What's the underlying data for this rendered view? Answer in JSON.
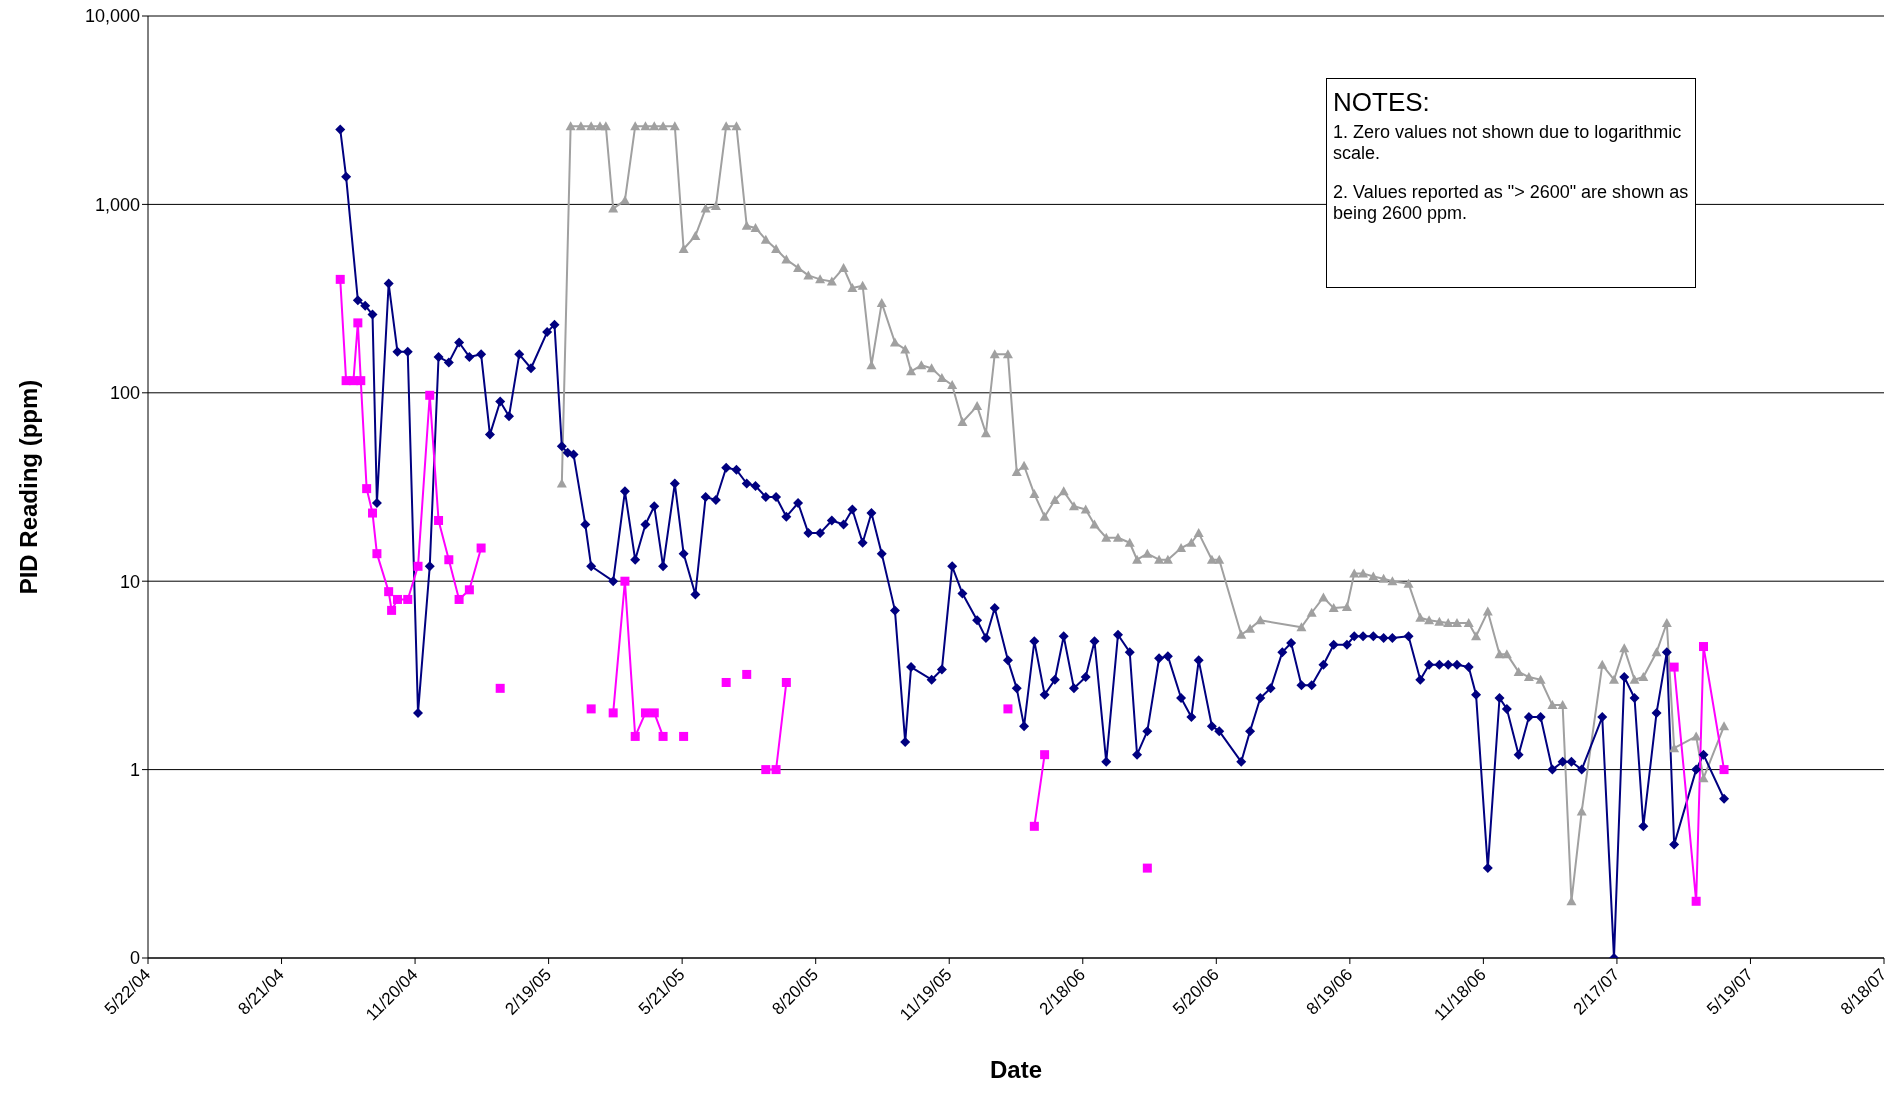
{
  "chart_data": {
    "type": "line",
    "xlabel": "Date",
    "ylabel": "PID Reading (ppm)",
    "log": "y",
    "grid": "y",
    "xlim": [
      "2004-05-22",
      "2007-08-18"
    ],
    "xticks": [
      {
        "value": "2004-05-22",
        "label": "5/22/04"
      },
      {
        "value": "2004-08-21",
        "label": "8/21/04"
      },
      {
        "value": "2004-11-20",
        "label": "11/20/04"
      },
      {
        "value": "2005-02-19",
        "label": "2/19/05"
      },
      {
        "value": "2005-05-21",
        "label": "5/21/05"
      },
      {
        "value": "2005-08-20",
        "label": "8/20/05"
      },
      {
        "value": "2005-11-19",
        "label": "11/19/05"
      },
      {
        "value": "2006-02-18",
        "label": "2/18/06"
      },
      {
        "value": "2006-05-20",
        "label": "5/20/06"
      },
      {
        "value": "2006-08-19",
        "label": "8/19/06"
      },
      {
        "value": "2006-11-18",
        "label": "11/18/06"
      },
      {
        "value": "2007-02-17",
        "label": "2/17/07"
      },
      {
        "value": "2007-05-19",
        "label": "5/19/07"
      },
      {
        "value": "2007-08-18",
        "label": "8/18/07"
      }
    ],
    "ylim": [
      0.1,
      10000
    ],
    "yticks": [
      {
        "value": 0.1,
        "label": "0"
      },
      {
        "value": 1,
        "label": "1"
      },
      {
        "value": 10,
        "label": "10"
      },
      {
        "value": 100,
        "label": "100"
      },
      {
        "value": 1000,
        "label": "1,000"
      },
      {
        "value": 10000,
        "label": "10,000"
      }
    ],
    "annotations": [
      "NOTES:",
      "1.  Zero values not shown due to logarithmic scale.",
      "2.  Values reported as \"> 2600\" are shown as being 2600 ppm."
    ],
    "series": [
      {
        "color": "#a0a0a0",
        "marker": "triangle",
        "x": [
          "2005-02-28",
          "2005-03-06",
          "2005-03-13",
          "2005-03-20",
          "2005-03-26",
          "2005-03-30",
          "2005-04-04",
          "2005-04-12",
          "2005-04-19",
          "2005-04-26",
          "2005-05-02",
          "2005-05-08",
          "2005-05-16",
          "2005-05-22",
          "2005-05-30",
          "2005-06-06",
          "2005-06-13",
          "2005-06-20",
          "2005-06-27",
          "2005-07-04",
          "2005-07-10",
          "2005-07-17",
          "2005-07-24",
          "2005-07-31",
          "2005-08-08",
          "2005-08-15",
          "2005-08-23",
          "2005-08-31",
          "2005-09-08",
          "2005-09-14",
          "2005-09-21",
          "2005-09-27",
          "2005-10-04",
          "2005-10-13",
          "2005-10-20",
          "2005-10-24",
          "2005-10-31",
          "2005-11-07",
          "2005-11-14",
          "2005-11-21",
          "2005-11-28",
          "2005-12-08",
          "2005-12-14",
          "2005-12-20",
          "2005-12-29",
          "2006-01-04",
          "2006-01-09",
          "2006-01-16",
          "2006-01-23",
          "2006-01-30",
          "2006-02-05",
          "2006-02-12",
          "2006-02-20",
          "2006-02-26",
          "2006-03-06",
          "2006-03-14",
          "2006-03-22",
          "2006-03-27",
          "2006-04-03",
          "2006-04-11",
          "2006-04-17",
          "2006-04-26",
          "2006-05-03",
          "2006-05-08",
          "2006-05-17",
          "2006-05-22",
          "2006-06-06",
          "2006-06-12",
          "2006-06-19",
          "2006-07-17",
          "2006-07-24",
          "2006-08-01",
          "2006-08-08",
          "2006-08-17",
          "2006-08-22",
          "2006-08-28",
          "2006-09-04",
          "2006-09-11",
          "2006-09-17",
          "2006-09-28",
          "2006-10-06",
          "2006-10-12",
          "2006-10-19",
          "2006-10-25",
          "2006-10-31",
          "2006-11-08",
          "2006-11-13",
          "2006-11-21",
          "2006-11-29",
          "2006-12-04",
          "2006-12-12",
          "2006-12-19",
          "2006-12-27",
          "2007-01-04",
          "2007-01-11",
          "2007-01-17",
          "2007-01-24",
          "2007-02-07",
          "2007-02-15",
          "2007-02-22",
          "2007-03-01",
          "2007-03-07",
          "2007-03-16",
          "2007-03-23",
          "2007-03-28",
          "2007-04-12",
          "2007-04-17",
          "2007-05-01"
        ],
        "values": [
          33,
          2600,
          2600,
          2600,
          2600,
          2600,
          950,
          1050,
          2600,
          2600,
          2600,
          2600,
          2600,
          580,
          680,
          950,
          980,
          2600,
          2600,
          770,
          750,
          650,
          580,
          510,
          460,
          420,
          400,
          390,
          460,
          360,
          370,
          140,
          300,
          185,
          170,
          130,
          140,
          135,
          120,
          110,
          70,
          85,
          61,
          160,
          160,
          38,
          41,
          29,
          22,
          27,
          30,
          25,
          24,
          20,
          17,
          17,
          16,
          13,
          14,
          13,
          13,
          15,
          16,
          18,
          13,
          13,
          5.2,
          5.6,
          6.2,
          5.7,
          6.8,
          8.2,
          7.2,
          7.3,
          11,
          11,
          10.6,
          10.3,
          10,
          9.7,
          6.4,
          6.2,
          6.1,
          6,
          6,
          6,
          5.1,
          6.9,
          4.1,
          4.1,
          3.3,
          3.1,
          3,
          2.2,
          2.2,
          0.2,
          0.6,
          3.6,
          3,
          4.4,
          3,
          3.1,
          4.2,
          6,
          1.3,
          1.5,
          0.9,
          1.7
        ]
      },
      {
        "color": "#000080",
        "marker": "diamond",
        "x": [
          "2004-09-30",
          "2004-10-04",
          "2004-10-12",
          "2004-10-17",
          "2004-10-22",
          "2004-10-25",
          "2004-11-02",
          "2004-11-08",
          "2004-11-15",
          "2004-11-22",
          "2004-11-30",
          "2004-12-06",
          "2004-12-13",
          "2004-12-20",
          "2004-12-27",
          "2005-01-04",
          "2005-01-10",
          "2005-01-17",
          "2005-01-23",
          "2005-01-30",
          "2005-02-07",
          "2005-02-18",
          "2005-02-23",
          "2005-02-28",
          "2005-03-04",
          "2005-03-08",
          "2005-03-16",
          "2005-03-20",
          "2005-04-04",
          "2005-04-12",
          "2005-04-19",
          "2005-04-26",
          "2005-05-02",
          "2005-05-08",
          "2005-05-16",
          "2005-05-22",
          "2005-05-30",
          "2005-06-06",
          "2005-06-13",
          "2005-06-20",
          "2005-06-27",
          "2005-07-04",
          "2005-07-10",
          "2005-07-17",
          "2005-07-24",
          "2005-07-31",
          "2005-08-08",
          "2005-08-15",
          "2005-08-23",
          "2005-08-31",
          "2005-09-08",
          "2005-09-14",
          "2005-09-21",
          "2005-09-27",
          "2005-10-04",
          "2005-10-13",
          "2005-10-20",
          "2005-10-24",
          "2005-11-07",
          "2005-11-14",
          "2005-11-21",
          "2005-11-28",
          "2005-12-08",
          "2005-12-14",
          "2005-12-20",
          "2005-12-29",
          "2006-01-04",
          "2006-01-09",
          "2006-01-16",
          "2006-01-23",
          "2006-01-30",
          "2006-02-05",
          "2006-02-12",
          "2006-02-20",
          "2006-02-26",
          "2006-03-06",
          "2006-03-14",
          "2006-03-22",
          "2006-03-27",
          "2006-04-03",
          "2006-04-11",
          "2006-04-17",
          "2006-04-26",
          "2006-05-03",
          "2006-05-08",
          "2006-05-17",
          "2006-05-22",
          "2006-06-06",
          "2006-06-12",
          "2006-06-19",
          "2006-06-26",
          "2006-07-04",
          "2006-07-10",
          "2006-07-17",
          "2006-07-24",
          "2006-08-01",
          "2006-08-08",
          "2006-08-17",
          "2006-08-22",
          "2006-08-28",
          "2006-09-04",
          "2006-09-11",
          "2006-09-17",
          "2006-09-28",
          "2006-10-06",
          "2006-10-12",
          "2006-10-19",
          "2006-10-25",
          "2006-10-31",
          "2006-11-08",
          "2006-11-13",
          "2006-11-21",
          "2006-11-29",
          "2006-12-04",
          "2006-12-12",
          "2006-12-19",
          "2006-12-27",
          "2007-01-04",
          "2007-01-11",
          "2007-01-17",
          "2007-01-24",
          "2007-02-07",
          "2007-02-15",
          "2007-02-22",
          "2007-03-01",
          "2007-03-07",
          "2007-03-16",
          "2007-03-23",
          "2007-03-28",
          "2007-04-12",
          "2007-04-17",
          "2007-05-01"
        ],
        "values": [
          2500,
          1400,
          310,
          290,
          260,
          26,
          380,
          165,
          165,
          2,
          12,
          155,
          145,
          185,
          155,
          160,
          60,
          90,
          75,
          160,
          135,
          210,
          230,
          52,
          48,
          47,
          20,
          12,
          10,
          30,
          13,
          20,
          25,
          12,
          33,
          14,
          8.5,
          28,
          27,
          40,
          39,
          33,
          32,
          28,
          28,
          22,
          26,
          18,
          18,
          21,
          20,
          24,
          16,
          23,
          14,
          7,
          1.4,
          3.5,
          3,
          3.4,
          12,
          8.6,
          6.2,
          5,
          7.2,
          3.8,
          2.7,
          1.7,
          4.8,
          2.5,
          3,
          5.1,
          2.7,
          3.1,
          4.8,
          1.1,
          5.2,
          4.2,
          1.2,
          1.6,
          3.9,
          4,
          2.4,
          1.9,
          3.8,
          1.7,
          1.6,
          1.1,
          1.6,
          2.4,
          2.7,
          4.2,
          4.7,
          2.8,
          2.8,
          3.6,
          4.6,
          4.6,
          5.1,
          5.1,
          5.1,
          5,
          5,
          5.1,
          3,
          3.6,
          3.6,
          3.6,
          3.6,
          3.5,
          2.5,
          0.3,
          2.4,
          2.1,
          1.2,
          1.9,
          1.9,
          1,
          1.1,
          1.1,
          1,
          1.9,
          0.1,
          3.1,
          2.4,
          0.5,
          2,
          4.2,
          0.4,
          1,
          1.2,
          0.7
        ]
      },
      {
        "color": "#ff00ff",
        "marker": "square",
        "x": [
          "2004-09-30",
          "2004-10-04",
          "2004-10-09",
          "2004-10-12",
          "2004-10-14",
          "2004-10-18",
          "2004-10-22",
          "2004-10-25",
          "2004-11-02",
          "2004-11-04",
          "2004-11-08",
          "2004-11-15",
          "2004-11-22",
          "2004-11-30",
          "2004-12-06",
          "2004-12-13",
          "2004-12-20",
          "2004-12-27",
          "2005-01-04",
          "2005-01-10",
          "2005-01-17",
          "2005-02-07",
          "2005-03-20",
          "2005-03-30",
          "2005-04-04",
          "2005-04-12",
          "2005-04-19",
          "2005-04-26",
          "2005-05-02",
          "2005-05-08",
          "2005-05-16",
          "2005-05-22",
          "2005-06-06",
          "2005-06-20",
          "2005-06-27",
          "2005-07-04",
          "2005-07-10",
          "2005-07-17",
          "2005-07-24",
          "2005-07-31",
          "2005-08-08",
          "2005-12-29",
          "2006-01-04",
          "2006-01-16",
          "2006-01-23",
          "2006-01-30",
          "2006-04-03",
          "2006-04-11",
          "2007-03-28",
          "2007-04-12",
          "2007-04-17",
          "2007-05-01"
        ],
        "values": [
          400,
          116,
          116,
          235,
          116,
          31,
          23,
          14,
          8.8,
          7,
          8,
          8,
          12,
          97,
          21,
          13,
          8,
          9,
          15,
          null,
          2.7,
          null,
          2.1,
          null,
          2,
          10,
          1.5,
          2,
          2,
          1.5,
          null,
          1.5,
          null,
          2.9,
          null,
          3.2,
          null,
          1,
          1,
          2.9,
          null,
          2.1,
          null,
          0.5,
          1.2,
          null,
          0.3,
          null,
          3.5,
          0.2,
          4.5,
          1
        ]
      }
    ]
  }
}
